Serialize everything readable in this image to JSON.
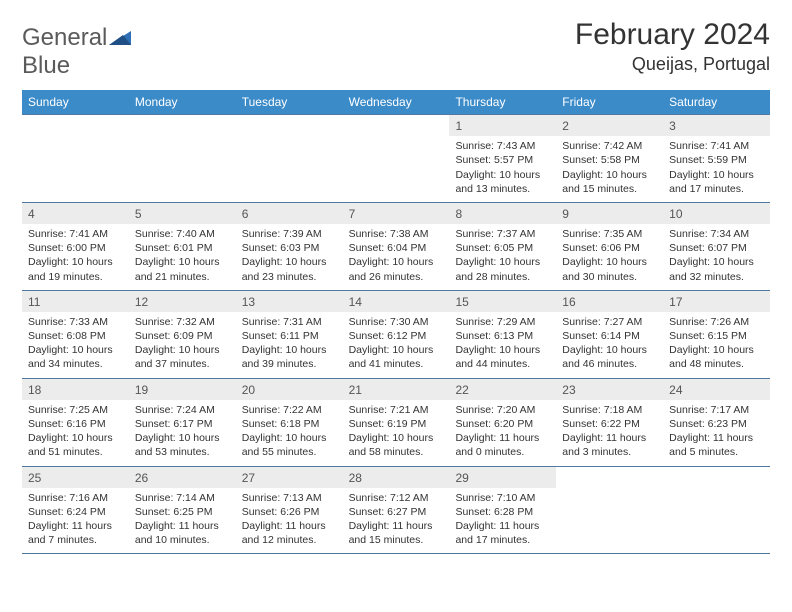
{
  "logo": {
    "word1": "General",
    "word2": "Blue"
  },
  "title": "February 2024",
  "location": "Queijas, Portugal",
  "colors": {
    "header_bg": "#3b8bc9",
    "header_text": "#ffffff",
    "daynum_bg": "#ececec",
    "row_border": "#5078a0",
    "logo_gray": "#5a5a5a",
    "logo_blue": "#3b7fc4"
  },
  "weekdays": [
    "Sunday",
    "Monday",
    "Tuesday",
    "Wednesday",
    "Thursday",
    "Friday",
    "Saturday"
  ],
  "weeks": [
    [
      null,
      null,
      null,
      null,
      {
        "n": "1",
        "sunrise": "Sunrise: 7:43 AM",
        "sunset": "Sunset: 5:57 PM",
        "daylight": "Daylight: 10 hours and 13 minutes."
      },
      {
        "n": "2",
        "sunrise": "Sunrise: 7:42 AM",
        "sunset": "Sunset: 5:58 PM",
        "daylight": "Daylight: 10 hours and 15 minutes."
      },
      {
        "n": "3",
        "sunrise": "Sunrise: 7:41 AM",
        "sunset": "Sunset: 5:59 PM",
        "daylight": "Daylight: 10 hours and 17 minutes."
      }
    ],
    [
      {
        "n": "4",
        "sunrise": "Sunrise: 7:41 AM",
        "sunset": "Sunset: 6:00 PM",
        "daylight": "Daylight: 10 hours and 19 minutes."
      },
      {
        "n": "5",
        "sunrise": "Sunrise: 7:40 AM",
        "sunset": "Sunset: 6:01 PM",
        "daylight": "Daylight: 10 hours and 21 minutes."
      },
      {
        "n": "6",
        "sunrise": "Sunrise: 7:39 AM",
        "sunset": "Sunset: 6:03 PM",
        "daylight": "Daylight: 10 hours and 23 minutes."
      },
      {
        "n": "7",
        "sunrise": "Sunrise: 7:38 AM",
        "sunset": "Sunset: 6:04 PM",
        "daylight": "Daylight: 10 hours and 26 minutes."
      },
      {
        "n": "8",
        "sunrise": "Sunrise: 7:37 AM",
        "sunset": "Sunset: 6:05 PM",
        "daylight": "Daylight: 10 hours and 28 minutes."
      },
      {
        "n": "9",
        "sunrise": "Sunrise: 7:35 AM",
        "sunset": "Sunset: 6:06 PM",
        "daylight": "Daylight: 10 hours and 30 minutes."
      },
      {
        "n": "10",
        "sunrise": "Sunrise: 7:34 AM",
        "sunset": "Sunset: 6:07 PM",
        "daylight": "Daylight: 10 hours and 32 minutes."
      }
    ],
    [
      {
        "n": "11",
        "sunrise": "Sunrise: 7:33 AM",
        "sunset": "Sunset: 6:08 PM",
        "daylight": "Daylight: 10 hours and 34 minutes."
      },
      {
        "n": "12",
        "sunrise": "Sunrise: 7:32 AM",
        "sunset": "Sunset: 6:09 PM",
        "daylight": "Daylight: 10 hours and 37 minutes."
      },
      {
        "n": "13",
        "sunrise": "Sunrise: 7:31 AM",
        "sunset": "Sunset: 6:11 PM",
        "daylight": "Daylight: 10 hours and 39 minutes."
      },
      {
        "n": "14",
        "sunrise": "Sunrise: 7:30 AM",
        "sunset": "Sunset: 6:12 PM",
        "daylight": "Daylight: 10 hours and 41 minutes."
      },
      {
        "n": "15",
        "sunrise": "Sunrise: 7:29 AM",
        "sunset": "Sunset: 6:13 PM",
        "daylight": "Daylight: 10 hours and 44 minutes."
      },
      {
        "n": "16",
        "sunrise": "Sunrise: 7:27 AM",
        "sunset": "Sunset: 6:14 PM",
        "daylight": "Daylight: 10 hours and 46 minutes."
      },
      {
        "n": "17",
        "sunrise": "Sunrise: 7:26 AM",
        "sunset": "Sunset: 6:15 PM",
        "daylight": "Daylight: 10 hours and 48 minutes."
      }
    ],
    [
      {
        "n": "18",
        "sunrise": "Sunrise: 7:25 AM",
        "sunset": "Sunset: 6:16 PM",
        "daylight": "Daylight: 10 hours and 51 minutes."
      },
      {
        "n": "19",
        "sunrise": "Sunrise: 7:24 AM",
        "sunset": "Sunset: 6:17 PM",
        "daylight": "Daylight: 10 hours and 53 minutes."
      },
      {
        "n": "20",
        "sunrise": "Sunrise: 7:22 AM",
        "sunset": "Sunset: 6:18 PM",
        "daylight": "Daylight: 10 hours and 55 minutes."
      },
      {
        "n": "21",
        "sunrise": "Sunrise: 7:21 AM",
        "sunset": "Sunset: 6:19 PM",
        "daylight": "Daylight: 10 hours and 58 minutes."
      },
      {
        "n": "22",
        "sunrise": "Sunrise: 7:20 AM",
        "sunset": "Sunset: 6:20 PM",
        "daylight": "Daylight: 11 hours and 0 minutes."
      },
      {
        "n": "23",
        "sunrise": "Sunrise: 7:18 AM",
        "sunset": "Sunset: 6:22 PM",
        "daylight": "Daylight: 11 hours and 3 minutes."
      },
      {
        "n": "24",
        "sunrise": "Sunrise: 7:17 AM",
        "sunset": "Sunset: 6:23 PM",
        "daylight": "Daylight: 11 hours and 5 minutes."
      }
    ],
    [
      {
        "n": "25",
        "sunrise": "Sunrise: 7:16 AM",
        "sunset": "Sunset: 6:24 PM",
        "daylight": "Daylight: 11 hours and 7 minutes."
      },
      {
        "n": "26",
        "sunrise": "Sunrise: 7:14 AM",
        "sunset": "Sunset: 6:25 PM",
        "daylight": "Daylight: 11 hours and 10 minutes."
      },
      {
        "n": "27",
        "sunrise": "Sunrise: 7:13 AM",
        "sunset": "Sunset: 6:26 PM",
        "daylight": "Daylight: 11 hours and 12 minutes."
      },
      {
        "n": "28",
        "sunrise": "Sunrise: 7:12 AM",
        "sunset": "Sunset: 6:27 PM",
        "daylight": "Daylight: 11 hours and 15 minutes."
      },
      {
        "n": "29",
        "sunrise": "Sunrise: 7:10 AM",
        "sunset": "Sunset: 6:28 PM",
        "daylight": "Daylight: 11 hours and 17 minutes."
      },
      null,
      null
    ]
  ]
}
